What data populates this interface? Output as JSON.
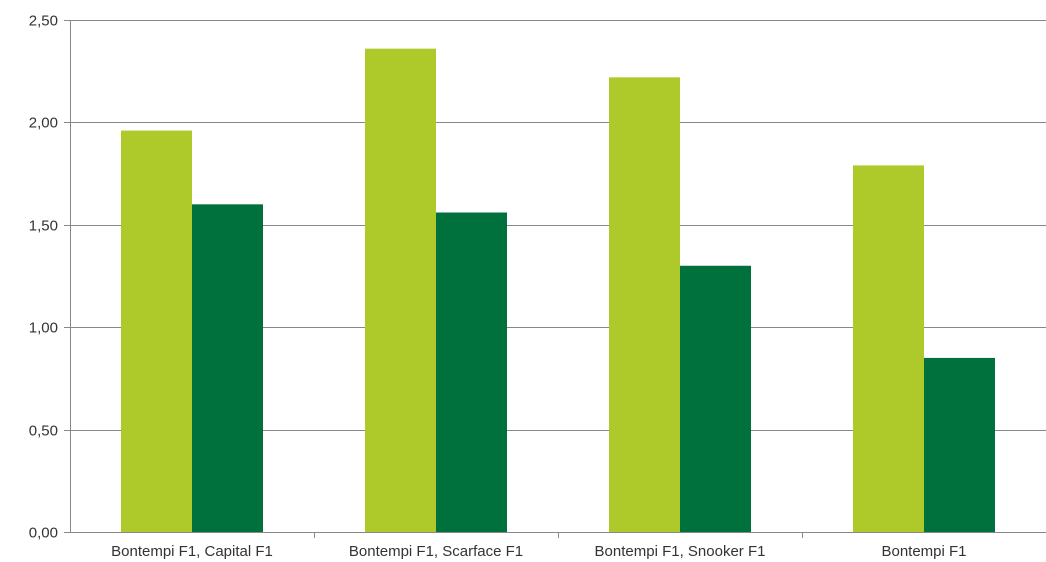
{
  "chart_data": {
    "type": "bar",
    "title": "",
    "xlabel": "",
    "ylabel": "",
    "categories": [
      "Bontempi F1, Capital F1",
      "Bontempi F1, Scarface F1",
      "Bontempi F1, Snooker F1",
      "Bontempi F1"
    ],
    "series": [
      {
        "values": [
          1.96,
          2.36,
          2.22,
          1.79
        ],
        "color": "#adc92a"
      },
      {
        "values": [
          1.6,
          1.56,
          1.3,
          0.85
        ],
        "color": "#00703c"
      }
    ],
    "ylim": [
      0,
      2.5
    ],
    "yticks": [
      0,
      0.5,
      1.0,
      1.5,
      2.0,
      2.5
    ],
    "ytick_labels": [
      "0,00",
      "0,50",
      "1,00",
      "1,50",
      "2,00",
      "2,50"
    ],
    "grid": true,
    "legend": "none"
  }
}
